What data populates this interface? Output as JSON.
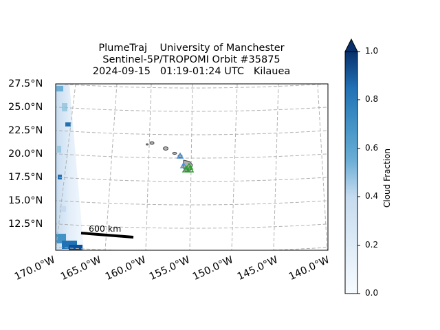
{
  "title": {
    "line1": "PlumeTraj    University of Manchester",
    "line2": "Sentinel-5P/TROPOMI Orbit #35875",
    "line3": "2024-09-15   01:19-01:24 UTC   Kilauea"
  },
  "lat_labels": [
    "27.5°N",
    "25.0°N",
    "22.5°N",
    "20.0°N",
    "17.5°N",
    "15.0°N",
    "12.5°N"
  ],
  "lon_labels": [
    "170.0°W",
    "165.0°W",
    "160.0°W",
    "155.0°W",
    "150.0°W",
    "145.0°W",
    "140.0°W"
  ],
  "scale_bar": {
    "label": "600 km"
  },
  "colorbar": {
    "label": "Cloud Fraction",
    "ticks": [
      "0.0",
      "0.2",
      "0.4",
      "0.6",
      "0.8",
      "1.0"
    ],
    "colormap": "Blues",
    "range": [
      0.0,
      1.0
    ],
    "extend": "max"
  },
  "map": {
    "gridlines": true,
    "volcano": "Kilauea",
    "marker_colors": {
      "volcano": "#2ca02c",
      "other": "#4a90d9"
    },
    "land_color": "#b0b0b0"
  }
}
